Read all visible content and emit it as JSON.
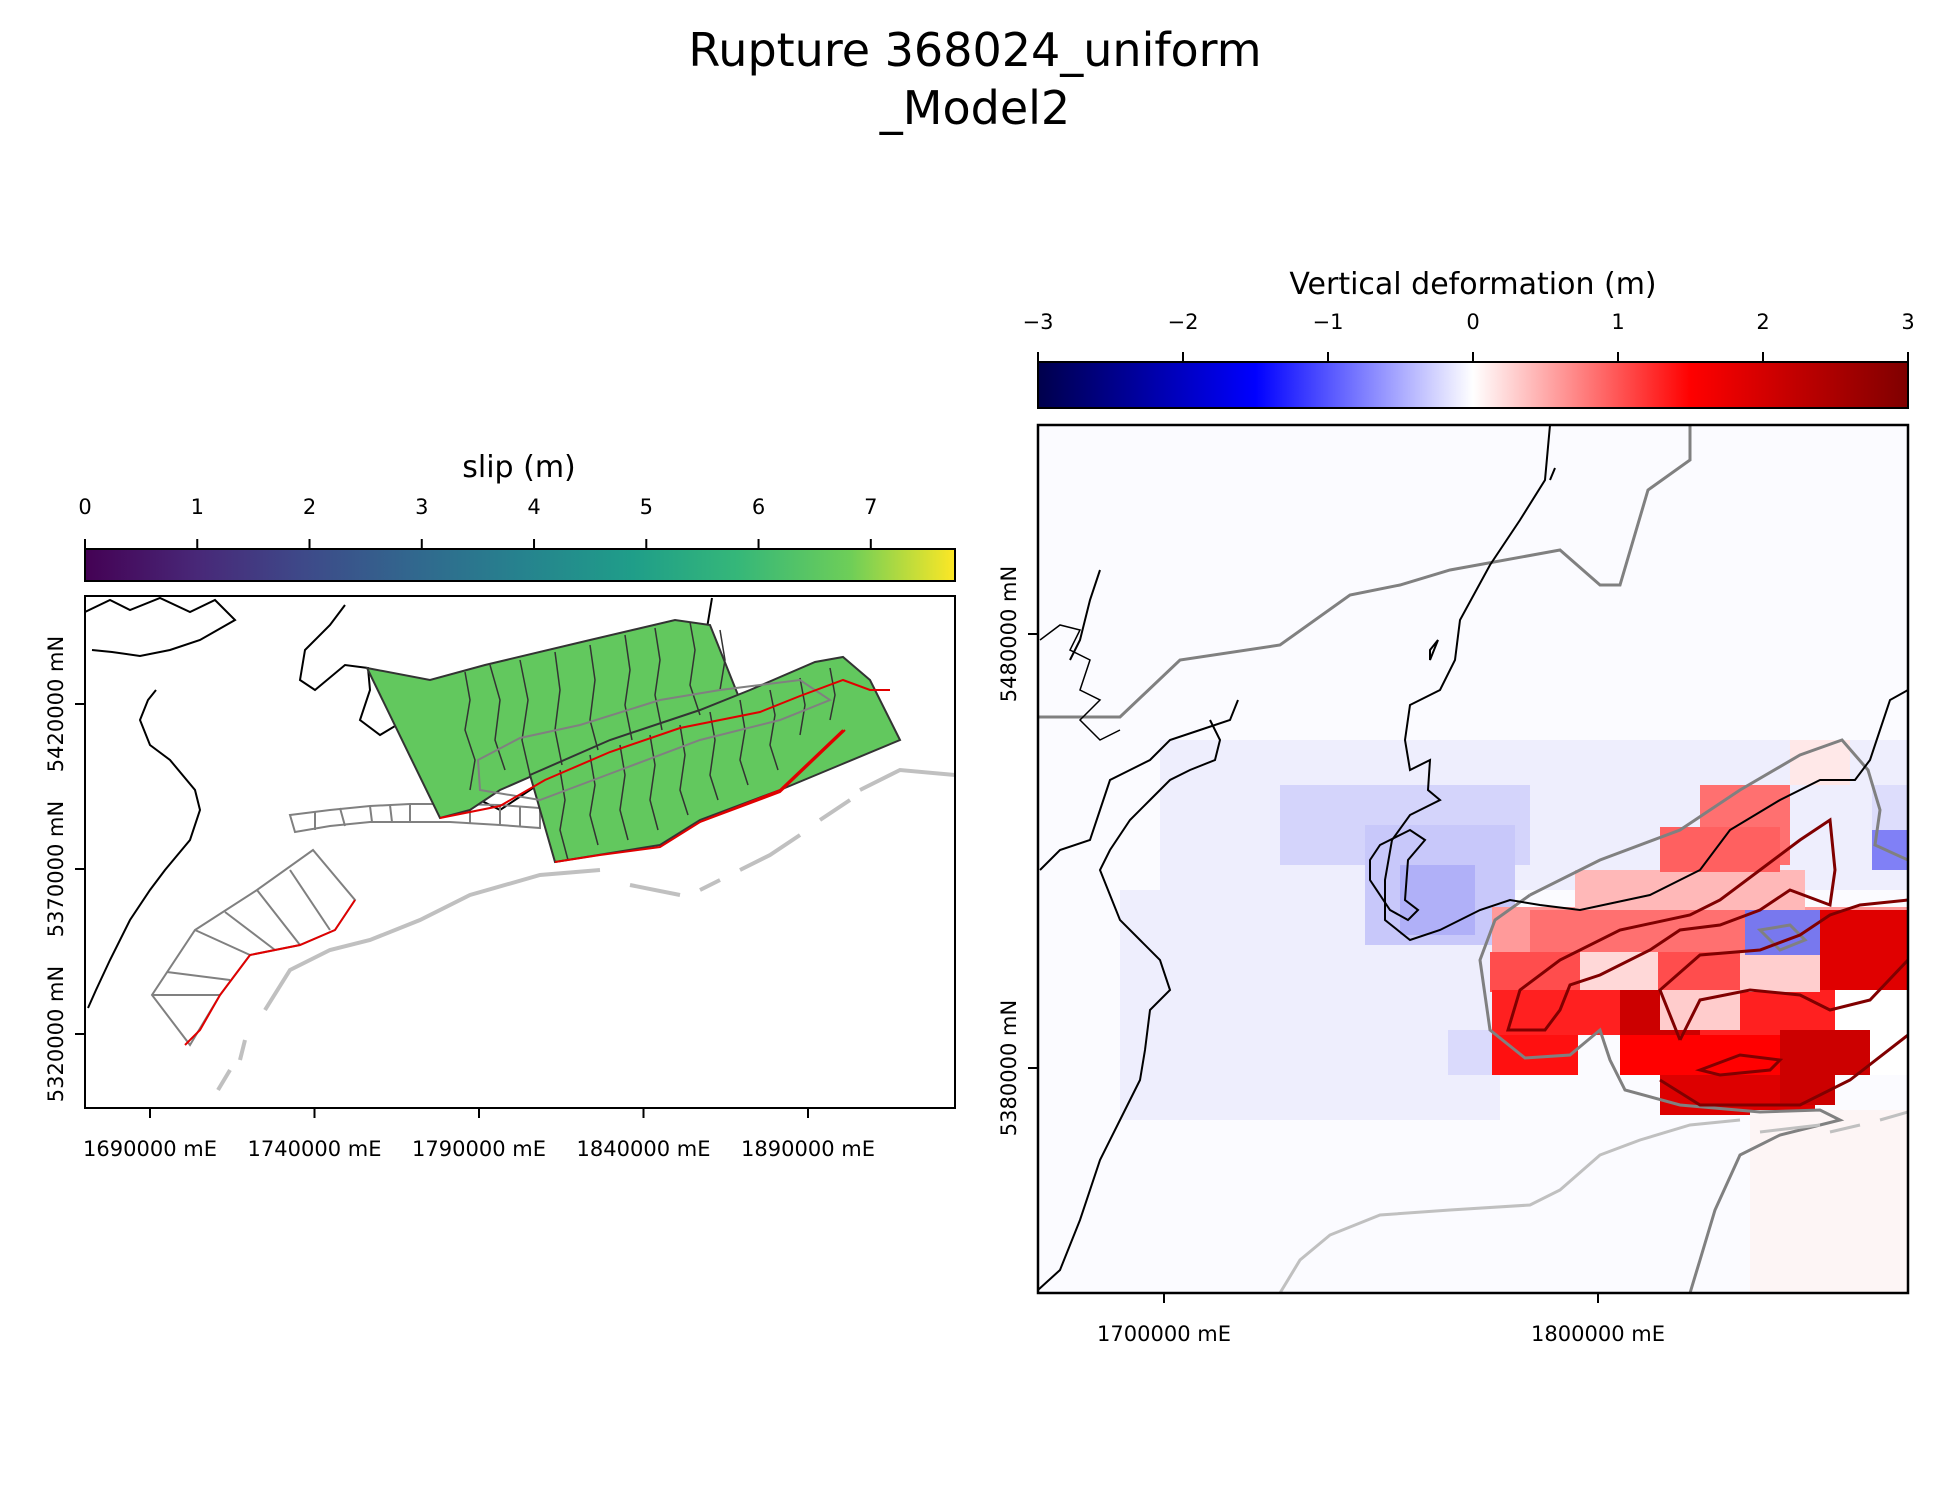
{
  "figure": {
    "title_line1": "Rupture 368024_uniform",
    "title_line2": "_Model2"
  },
  "left_panel": {
    "colorbar": {
      "label": "slip (m)",
      "colormap": "viridis",
      "ticks": [
        "0",
        "1",
        "2",
        "3",
        "4",
        "5",
        "6",
        "7"
      ]
    },
    "x_ticks": [
      "1690000 mE",
      "1740000 mE",
      "1790000 mE",
      "1840000 mE",
      "1890000 mE"
    ],
    "y_ticks": [
      "5320000 mN",
      "5370000 mN",
      "5420000 mN"
    ],
    "rupture_patch_color": "#62c85e",
    "trace_color": "#e00000"
  },
  "right_panel": {
    "colorbar": {
      "label": "Vertical deformation (m)",
      "colormap": "seismic",
      "ticks": [
        "−3",
        "−2",
        "−1",
        "0",
        "1",
        "2",
        "3"
      ]
    },
    "x_ticks": [
      "1700000 mE",
      "1800000 mE"
    ],
    "y_ticks": [
      "5380000 mN",
      "5480000 mN"
    ]
  }
}
